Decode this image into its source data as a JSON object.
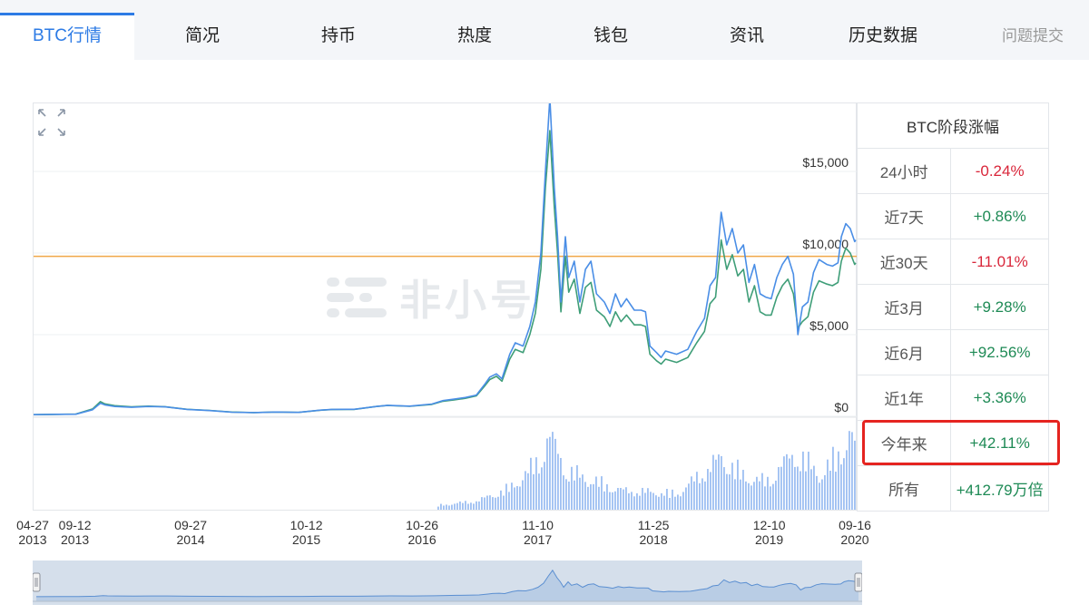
{
  "tabs": [
    {
      "label": "BTC行情",
      "active": true
    },
    {
      "label": "简况"
    },
    {
      "label": "持币"
    },
    {
      "label": "热度"
    },
    {
      "label": "钱包"
    },
    {
      "label": "资讯"
    },
    {
      "label": "历史数据"
    },
    {
      "label": "问题提交",
      "muted": true
    }
  ],
  "watermark": "非小号",
  "colors": {
    "accent": "#2d7be5",
    "line_price": "#4a8ee6",
    "line_secondary": "#3f9e78",
    "reference_line": "#f0a849",
    "volume_bar": "#9dbff2",
    "positive": "#1e8a55",
    "negative": "#d9263a",
    "highlight": "#e52420"
  },
  "change_panel": {
    "title": "BTC阶段涨幅",
    "rows": [
      {
        "label": "24小时",
        "value": "-0.24%",
        "sign": "neg"
      },
      {
        "label": "近7天",
        "value": "+0.86%",
        "sign": "pos"
      },
      {
        "label": "近30天",
        "value": "-11.01%",
        "sign": "neg"
      },
      {
        "label": "近3月",
        "value": "+9.28%",
        "sign": "pos"
      },
      {
        "label": "近6月",
        "value": "+92.56%",
        "sign": "pos"
      },
      {
        "label": "近1年",
        "value": "+3.36%",
        "sign": "pos"
      },
      {
        "label": "今年来",
        "value": "+42.11%",
        "sign": "pos",
        "highlighted": true
      },
      {
        "label": "所有",
        "value": "+412.79万倍",
        "sign": "pos",
        "link": true
      }
    ]
  },
  "chart_data": {
    "type": "line",
    "y_ticks": [
      "$15,000",
      "$10,000",
      "$5,000",
      "$0"
    ],
    "ylim": [
      0,
      15000
    ],
    "reference_line_value": 9800,
    "x_ticks": [
      {
        "date": "04-27",
        "year": "2013"
      },
      {
        "date": "09-12",
        "year": "2013"
      },
      {
        "date": "09-27",
        "year": "2014"
      },
      {
        "date": "10-12",
        "year": "2015"
      },
      {
        "date": "10-26",
        "year": "2016"
      },
      {
        "date": "11-10",
        "year": "2017"
      },
      {
        "date": "11-25",
        "year": "2018"
      },
      {
        "date": "12-10",
        "year": "2019"
      },
      {
        "date": "09-16",
        "year": "2020"
      }
    ],
    "x_years": [
      2013.32,
      2013.7,
      2014.74,
      2015.78,
      2016.82,
      2017.86,
      2018.9,
      2019.94,
      2020.71
    ],
    "series": [
      {
        "role": "price",
        "points": [
          [
            2013.32,
            100
          ],
          [
            2013.55,
            120
          ],
          [
            2013.7,
            130
          ],
          [
            2013.85,
            400
          ],
          [
            2013.92,
            800
          ],
          [
            2013.96,
            700
          ],
          [
            2014.05,
            600
          ],
          [
            2014.2,
            550
          ],
          [
            2014.35,
            600
          ],
          [
            2014.5,
            580
          ],
          [
            2014.7,
            420
          ],
          [
            2014.9,
            350
          ],
          [
            2015.1,
            250
          ],
          [
            2015.3,
            230
          ],
          [
            2015.5,
            260
          ],
          [
            2015.7,
            240
          ],
          [
            2015.9,
            380
          ],
          [
            2016.0,
            420
          ],
          [
            2016.2,
            430
          ],
          [
            2016.4,
            600
          ],
          [
            2016.5,
            670
          ],
          [
            2016.7,
            620
          ],
          [
            2016.9,
            750
          ],
          [
            2017.0,
            960
          ],
          [
            2017.1,
            1050
          ],
          [
            2017.2,
            1150
          ],
          [
            2017.3,
            1300
          ],
          [
            2017.38,
            2000
          ],
          [
            2017.42,
            2400
          ],
          [
            2017.48,
            2600
          ],
          [
            2017.53,
            2300
          ],
          [
            2017.6,
            3800
          ],
          [
            2017.65,
            4500
          ],
          [
            2017.72,
            4300
          ],
          [
            2017.78,
            5500
          ],
          [
            2017.83,
            7000
          ],
          [
            2017.88,
            10000
          ],
          [
            2017.92,
            15000
          ],
          [
            2017.96,
            19500
          ],
          [
            2018.0,
            14000
          ],
          [
            2018.03,
            11000
          ],
          [
            2018.06,
            7000
          ],
          [
            2018.1,
            11000
          ],
          [
            2018.13,
            8500
          ],
          [
            2018.18,
            9500
          ],
          [
            2018.23,
            7000
          ],
          [
            2018.28,
            9000
          ],
          [
            2018.33,
            9500
          ],
          [
            2018.38,
            7500
          ],
          [
            2018.45,
            7000
          ],
          [
            2018.5,
            6300
          ],
          [
            2018.55,
            7500
          ],
          [
            2018.6,
            6700
          ],
          [
            2018.65,
            7200
          ],
          [
            2018.72,
            6500
          ],
          [
            2018.78,
            6500
          ],
          [
            2018.82,
            6400
          ],
          [
            2018.86,
            4300
          ],
          [
            2018.92,
            3900
          ],
          [
            2018.96,
            3600
          ],
          [
            2019.0,
            4000
          ],
          [
            2019.1,
            3800
          ],
          [
            2019.2,
            4100
          ],
          [
            2019.28,
            5200
          ],
          [
            2019.35,
            6000
          ],
          [
            2019.4,
            8000
          ],
          [
            2019.45,
            8500
          ],
          [
            2019.5,
            12500
          ],
          [
            2019.55,
            10500
          ],
          [
            2019.6,
            11500
          ],
          [
            2019.65,
            10000
          ],
          [
            2019.7,
            10500
          ],
          [
            2019.75,
            8200
          ],
          [
            2019.8,
            9300
          ],
          [
            2019.85,
            7500
          ],
          [
            2019.9,
            7300
          ],
          [
            2019.95,
            7200
          ],
          [
            2020.0,
            8500
          ],
          [
            2020.05,
            9300
          ],
          [
            2020.1,
            9800
          ],
          [
            2020.15,
            8700
          ],
          [
            2020.19,
            5000
          ],
          [
            2020.23,
            6700
          ],
          [
            2020.28,
            7000
          ],
          [
            2020.33,
            8800
          ],
          [
            2020.38,
            9600
          ],
          [
            2020.45,
            9300
          ],
          [
            2020.5,
            9200
          ],
          [
            2020.55,
            9400
          ],
          [
            2020.58,
            11000
          ],
          [
            2020.62,
            11800
          ],
          [
            2020.66,
            11500
          ],
          [
            2020.7,
            10700
          ],
          [
            2020.71,
            10800
          ]
        ]
      },
      {
        "role": "secondary",
        "points": [
          [
            2013.32,
            100
          ],
          [
            2013.55,
            120
          ],
          [
            2013.7,
            140
          ],
          [
            2013.85,
            450
          ],
          [
            2013.92,
            900
          ],
          [
            2013.96,
            760
          ],
          [
            2014.05,
            650
          ],
          [
            2014.2,
            580
          ],
          [
            2014.35,
            620
          ],
          [
            2014.5,
            590
          ],
          [
            2014.7,
            430
          ],
          [
            2014.9,
            360
          ],
          [
            2015.1,
            260
          ],
          [
            2015.3,
            230
          ],
          [
            2015.5,
            260
          ],
          [
            2015.7,
            240
          ],
          [
            2015.9,
            370
          ],
          [
            2016.0,
            410
          ],
          [
            2016.2,
            420
          ],
          [
            2016.4,
            600
          ],
          [
            2016.5,
            660
          ],
          [
            2016.7,
            610
          ],
          [
            2016.9,
            730
          ],
          [
            2017.0,
            920
          ],
          [
            2017.1,
            1000
          ],
          [
            2017.2,
            1100
          ],
          [
            2017.3,
            1250
          ],
          [
            2017.38,
            1900
          ],
          [
            2017.42,
            2250
          ],
          [
            2017.48,
            2450
          ],
          [
            2017.53,
            2150
          ],
          [
            2017.6,
            3500
          ],
          [
            2017.65,
            4100
          ],
          [
            2017.72,
            3900
          ],
          [
            2017.78,
            5000
          ],
          [
            2017.83,
            6300
          ],
          [
            2017.88,
            9000
          ],
          [
            2017.92,
            14000
          ],
          [
            2017.96,
            17500
          ],
          [
            2018.0,
            12800
          ],
          [
            2018.03,
            10000
          ],
          [
            2018.06,
            6400
          ],
          [
            2018.1,
            9800
          ],
          [
            2018.13,
            7600
          ],
          [
            2018.18,
            8400
          ],
          [
            2018.23,
            6300
          ],
          [
            2018.28,
            7900
          ],
          [
            2018.33,
            8200
          ],
          [
            2018.38,
            6500
          ],
          [
            2018.45,
            6100
          ],
          [
            2018.5,
            5500
          ],
          [
            2018.55,
            6400
          ],
          [
            2018.6,
            5800
          ],
          [
            2018.65,
            6200
          ],
          [
            2018.72,
            5600
          ],
          [
            2018.78,
            5600
          ],
          [
            2018.82,
            5500
          ],
          [
            2018.86,
            3800
          ],
          [
            2018.92,
            3400
          ],
          [
            2018.96,
            3200
          ],
          [
            2019.0,
            3500
          ],
          [
            2019.1,
            3300
          ],
          [
            2019.2,
            3600
          ],
          [
            2019.28,
            4500
          ],
          [
            2019.35,
            5200
          ],
          [
            2019.4,
            6900
          ],
          [
            2019.45,
            7300
          ],
          [
            2019.5,
            10800
          ],
          [
            2019.55,
            9000
          ],
          [
            2019.6,
            9900
          ],
          [
            2019.65,
            8600
          ],
          [
            2019.7,
            9000
          ],
          [
            2019.75,
            7000
          ],
          [
            2019.8,
            8000
          ],
          [
            2019.85,
            6400
          ],
          [
            2019.9,
            6200
          ],
          [
            2019.95,
            6200
          ],
          [
            2020.0,
            7300
          ],
          [
            2020.05,
            8000
          ],
          [
            2020.1,
            8400
          ],
          [
            2020.15,
            7500
          ],
          [
            2020.19,
            5400
          ],
          [
            2020.23,
            5800
          ],
          [
            2020.28,
            6100
          ],
          [
            2020.33,
            7600
          ],
          [
            2020.38,
            8300
          ],
          [
            2020.45,
            8100
          ],
          [
            2020.5,
            8000
          ],
          [
            2020.55,
            8200
          ],
          [
            2020.58,
            9500
          ],
          [
            2020.62,
            10300
          ],
          [
            2020.66,
            10000
          ],
          [
            2020.7,
            9300
          ],
          [
            2020.71,
            9400
          ]
        ]
      }
    ],
    "volume": {
      "start": 2016.95,
      "end": 2020.71,
      "profile": [
        [
          2016.95,
          0.05
        ],
        [
          2017.3,
          0.1
        ],
        [
          2017.6,
          0.25
        ],
        [
          2017.85,
          0.55
        ],
        [
          2017.95,
          0.85
        ],
        [
          2018.1,
          0.45
        ],
        [
          2018.3,
          0.35
        ],
        [
          2018.6,
          0.22
        ],
        [
          2018.9,
          0.2
        ],
        [
          2019.1,
          0.18
        ],
        [
          2019.35,
          0.45
        ],
        [
          2019.5,
          0.6
        ],
        [
          2019.7,
          0.38
        ],
        [
          2019.9,
          0.32
        ],
        [
          2020.15,
          0.65
        ],
        [
          2020.25,
          0.55
        ],
        [
          2020.4,
          0.4
        ],
        [
          2020.55,
          0.65
        ],
        [
          2020.65,
          0.85
        ],
        [
          2020.71,
          0.7
        ]
      ]
    }
  }
}
